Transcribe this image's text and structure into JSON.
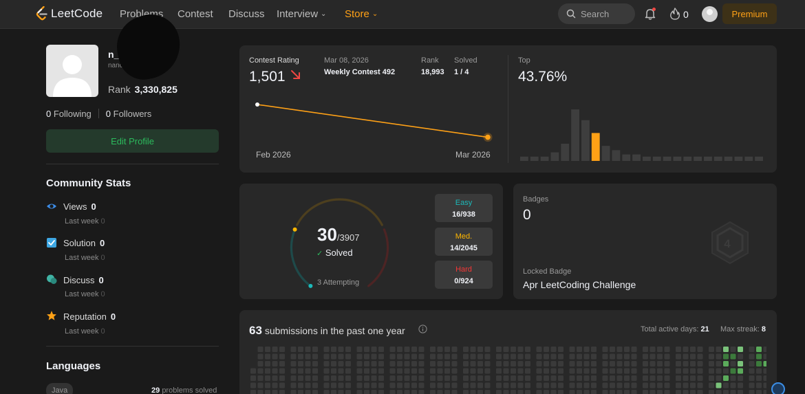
{
  "nav": {
    "logo_text": "LeetCode",
    "links": [
      "Problems",
      "Contest",
      "Discuss",
      "Interview",
      "Store"
    ],
    "search_placeholder": "Search",
    "streak_count": "0",
    "premium_label": "Premium",
    "accent": "#ffa116"
  },
  "profile": {
    "username": "n_a",
    "handle": "nanc",
    "rank_label": "Rank",
    "rank_value": "3,330,825",
    "following_count": "0",
    "following_label": "Following",
    "followers_count": "0",
    "followers_label": "Followers",
    "edit_label": "Edit Profile"
  },
  "community": {
    "title": "Community Stats",
    "items": [
      {
        "label": "Views",
        "value": "0",
        "sub_label": "Last week",
        "sub_value": "0",
        "icon": "eye-icon",
        "color": "#3c8ce7"
      },
      {
        "label": "Solution",
        "value": "0",
        "sub_label": "Last week",
        "sub_value": "0",
        "icon": "solution-icon",
        "color": "#3ea7e3"
      },
      {
        "label": "Discuss",
        "value": "0",
        "sub_label": "Last week",
        "sub_value": "0",
        "icon": "discuss-icon",
        "color": "#40b3a4"
      },
      {
        "label": "Reputation",
        "value": "0",
        "sub_label": "Last week",
        "sub_value": "0",
        "icon": "star-icon",
        "color": "#ffa116"
      }
    ]
  },
  "languages": {
    "title": "Languages",
    "items": [
      {
        "name": "Java",
        "count": "29",
        "suffix": "problems solved"
      }
    ]
  },
  "contest": {
    "rating_label": "Contest Rating",
    "rating_value": "1,501",
    "date": "Mar 08, 2026",
    "contest_name": "Weekly Contest 492",
    "rank_label": "Rank",
    "rank_value": "18,993",
    "solved_label": "Solved",
    "solved_value": "1 / 4",
    "top_label": "Top",
    "top_value": "43.76%",
    "x_start": "Feb 2026",
    "x_end": "Mar 2026"
  },
  "chart_data": [
    {
      "type": "line",
      "x": [
        "Feb 2026",
        "Mar 2026"
      ],
      "series": [
        {
          "values": [
            1620,
            1501
          ]
        }
      ],
      "ylim": [
        1480,
        1640
      ],
      "grid": false,
      "color": "#ffa116"
    },
    {
      "type": "bar",
      "values": [
        2,
        2,
        2,
        4,
        8,
        24,
        19,
        13,
        7,
        5,
        3,
        3,
        2,
        2,
        2,
        2,
        2,
        2,
        2,
        2,
        2,
        2,
        2,
        2
      ],
      "highlight_index": 7,
      "highlight_color": "#ffa116",
      "bar_color": "#3e3e3e",
      "ylim": [
        0,
        25
      ],
      "grid": false
    }
  ],
  "solved": {
    "count": "30",
    "total": "/3907",
    "solved_label": "Solved",
    "attempting": "3 Attempting",
    "progress": 0.0077,
    "easy": {
      "label": "Easy",
      "value": "16/938",
      "color": "#1cbaba"
    },
    "medium": {
      "label": "Med.",
      "value": "14/2045",
      "color": "#ffb700"
    },
    "hard": {
      "label": "Hard",
      "value": "0/924",
      "color": "#f63737"
    }
  },
  "badges": {
    "title": "Badges",
    "count": "0",
    "locked_label": "Locked Badge",
    "locked_name": "Apr LeetCoding Challenge",
    "badge_text": "4"
  },
  "submissions": {
    "count": "63",
    "label": "submissions in the past one year",
    "active_label": "Total active days:",
    "active_value": "21",
    "streak_label": "Max streak:",
    "streak_value": "8"
  }
}
